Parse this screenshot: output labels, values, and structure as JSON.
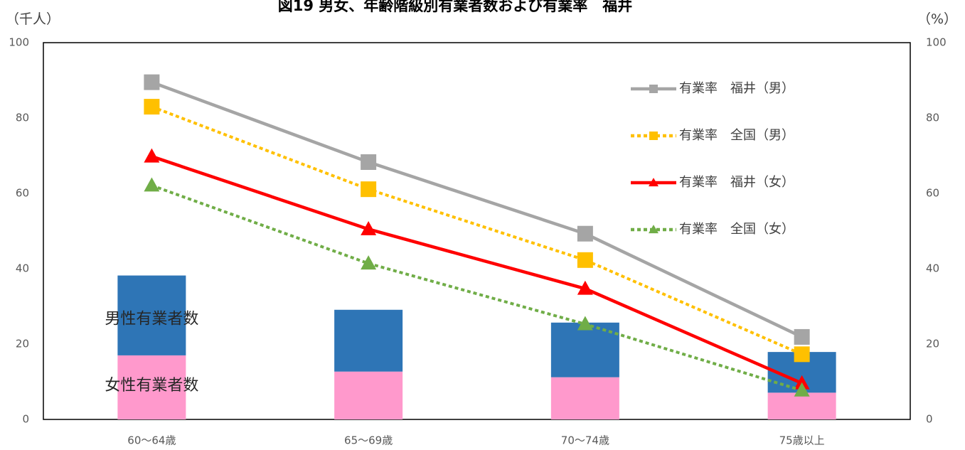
{
  "chart_data": {
    "type": "bar",
    "title": "図19 男女、年齢階級別有業者数および有業率　福井",
    "left_unit": "（千人）",
    "right_unit": "（%）",
    "categories": [
      "60～64歳",
      "65～69歳",
      "70～74歳",
      "75歳以上"
    ],
    "ylim_left": [
      0,
      100
    ],
    "ylim_right": [
      0,
      100
    ],
    "yticks": [
      0,
      20,
      40,
      60,
      80,
      100
    ],
    "bar_series": [
      {
        "name": "女性有業者数",
        "values": [
          17,
          12.7,
          11.2,
          7.1
        ],
        "color": "#ff99cc"
      },
      {
        "name": "男性有業者数",
        "values": [
          21.2,
          16.4,
          14.5,
          10.8
        ],
        "color": "#2e75b6"
      }
    ],
    "line_series": [
      {
        "name": "有業率　福井（男）",
        "values": [
          89.5,
          68.3,
          49.3,
          21.9
        ],
        "color": "#a5a5a5",
        "marker": "square",
        "dash": "solid"
      },
      {
        "name": "有業率　全国（男）",
        "values": [
          83.0,
          61.1,
          42.3,
          17.3
        ],
        "color": "#ffc000",
        "marker": "square",
        "dash": "dotted"
      },
      {
        "name": "有業率　福井（女）",
        "values": [
          69.8,
          50.5,
          34.7,
          9.6
        ],
        "color": "#ff0000",
        "marker": "triangle",
        "dash": "solid"
      },
      {
        "name": "有業率　全国（女）",
        "values": [
          62.1,
          41.4,
          25.3,
          7.7
        ],
        "color": "#70ad47",
        "marker": "triangle",
        "dash": "dotted"
      }
    ],
    "legend_position": "top-right",
    "grid": false
  }
}
